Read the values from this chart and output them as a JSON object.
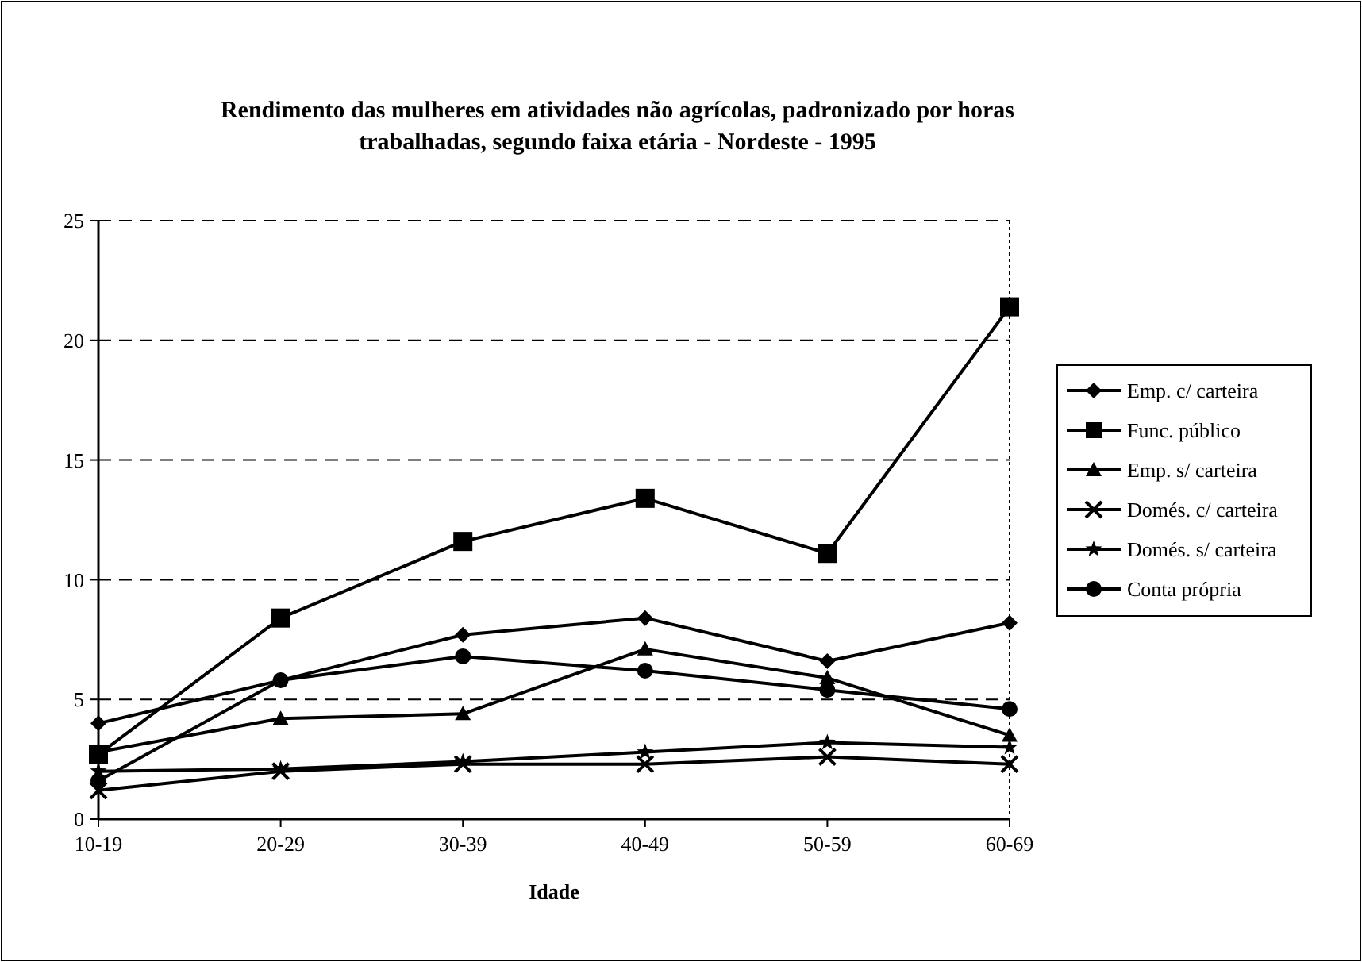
{
  "chart_data": {
    "type": "line",
    "title": "Rendimento das mulheres em atividades não agrícolas, padronizado por horas trabalhadas, segundo faixa etária - Nordeste - 1995",
    "xlabel": "Idade",
    "categories": [
      "10-19",
      "20-29",
      "30-39",
      "40-49",
      "50-59",
      "60-69"
    ],
    "series": [
      {
        "name": "Emp. c/ carteira",
        "color": "#000000",
        "marker": "diamond",
        "values": [
          4.0,
          5.8,
          7.7,
          8.4,
          6.6,
          8.2
        ]
      },
      {
        "name": "Func. público",
        "color": "#000000",
        "marker": "square",
        "values": [
          2.7,
          8.4,
          11.6,
          13.4,
          11.1,
          21.4
        ]
      },
      {
        "name": "Emp. s/ carteira",
        "color": "#000000",
        "marker": "triangle",
        "values": [
          2.8,
          4.2,
          4.4,
          7.1,
          5.9,
          3.5
        ]
      },
      {
        "name": "Domés. c/ carteira",
        "color": "#000000",
        "marker": "cross",
        "values": [
          1.2,
          2.0,
          2.3,
          2.3,
          2.6,
          2.3
        ]
      },
      {
        "name": "Domés. s/ carteira",
        "color": "#000000",
        "marker": "star",
        "values": [
          2.0,
          2.1,
          2.4,
          2.8,
          3.2,
          3.0
        ]
      },
      {
        "name": "Conta própria",
        "color": "#000000",
        "marker": "circle",
        "values": [
          1.6,
          5.8,
          6.8,
          6.2,
          5.4,
          4.6
        ]
      }
    ],
    "ylim": [
      0,
      25
    ],
    "yticks": [
      0,
      5,
      10,
      15,
      20,
      25
    ],
    "grid": "y",
    "legend": "right"
  }
}
